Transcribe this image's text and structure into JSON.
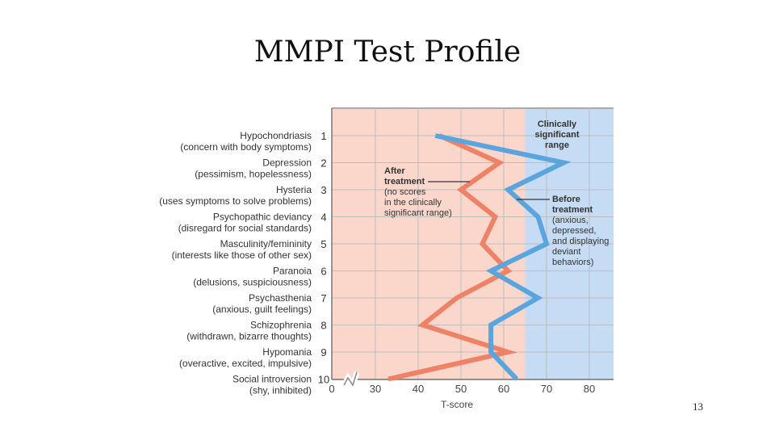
{
  "slide": {
    "title": "MMPI Test Profile",
    "page_number": "13"
  },
  "chart_data": {
    "type": "line",
    "xlabel": "T-score",
    "xlim": [
      0,
      86
    ],
    "x_ticks": [
      "0",
      "30",
      "40",
      "50",
      "60",
      "70",
      "80"
    ],
    "x_tick_values": [
      0,
      30,
      40,
      50,
      60,
      70,
      80
    ],
    "axis_break": true,
    "grid": true,
    "scales": [
      {
        "number": "1",
        "name": "Hypochondriasis",
        "description": "(concern with body symptoms)"
      },
      {
        "number": "2",
        "name": "Depression",
        "description": "(pessimism, hopelessness)"
      },
      {
        "number": "3",
        "name": "Hysteria",
        "description": "(uses symptoms to solve problems)"
      },
      {
        "number": "4",
        "name": "Psychopathic deviancy",
        "description": "(disregard for social standards)"
      },
      {
        "number": "5",
        "name": "Masculinity/femininity",
        "description": "(interests like those of other sex)"
      },
      {
        "number": "6",
        "name": "Paranoia",
        "description": "(delusions, suspiciousness)"
      },
      {
        "number": "7",
        "name": "Psychasthenia",
        "description": "(anxious, guilt feelings)"
      },
      {
        "number": "8",
        "name": "Schizophrenia",
        "description": "(withdrawn, bizarre thoughts)"
      },
      {
        "number": "9",
        "name": "Hypomania",
        "description": "(overactive, excited, impulsive)"
      },
      {
        "number": "10",
        "name": "Social introversion",
        "description": "(shy, inhibited)"
      }
    ],
    "significant_range": {
      "from": 65,
      "to": 86,
      "label_lines": [
        "Clinically",
        "significant",
        "range"
      ],
      "color": "#c6dcf4"
    },
    "normal_range_color": "#fbd7cb",
    "series": [
      {
        "key": "after",
        "color": "#ee8266",
        "values": [
          45,
          59,
          50,
          58,
          55,
          61,
          49,
          41,
          61,
          33
        ],
        "annotation_lines": [
          "After",
          "treatment",
          "(no scores",
          "in the clinically",
          "significant range)"
        ]
      },
      {
        "key": "before",
        "color": "#5aa5dd",
        "values": [
          44,
          74,
          61,
          68,
          70,
          57,
          68,
          57,
          57,
          63
        ],
        "annotation_lines": [
          "Before",
          "treatment",
          "(anxious,",
          "depressed,",
          "and displaying",
          "deviant",
          "behaviors)"
        ]
      }
    ]
  }
}
